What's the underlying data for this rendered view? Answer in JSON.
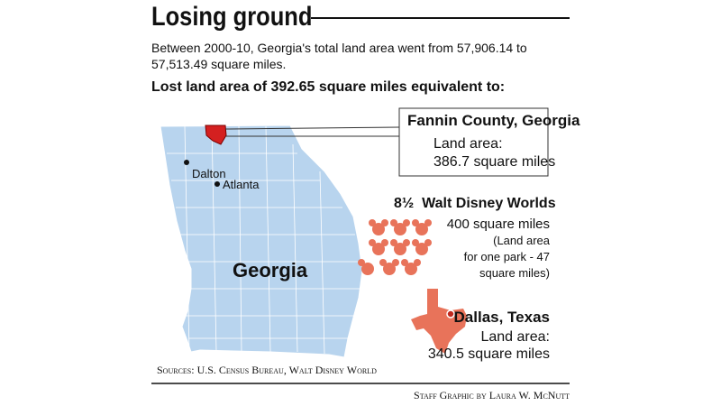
{
  "header": {
    "title": "Losing ground",
    "subtitle": "Between 2000-10, Georgia's total land area went from 57,906.14 to 57,513.49 square miles.",
    "headline": "Lost land area of 392.65 square miles equivalent to:"
  },
  "map": {
    "labels": [
      "Dalton",
      "Atlanta",
      "Georgia"
    ]
  },
  "comparisons": [
    {
      "title": "Fannin County, Georgia",
      "lines": [
        "Land area:",
        "386.7 square miles"
      ]
    },
    {
      "title": "8½  Walt Disney Worlds",
      "lines": [
        "400 square miles",
        "(Land area",
        "for one park - 47",
        "square miles)"
      ]
    },
    {
      "title": "Dallas, Texas",
      "lines": [
        "Land area:",
        "340.5 square miles"
      ]
    }
  ],
  "footer": {
    "sources": "Sources: U.S. Census Bureau, Walt Disney World",
    "credit": "Staff Graphic by Laura W. McNutt"
  }
}
